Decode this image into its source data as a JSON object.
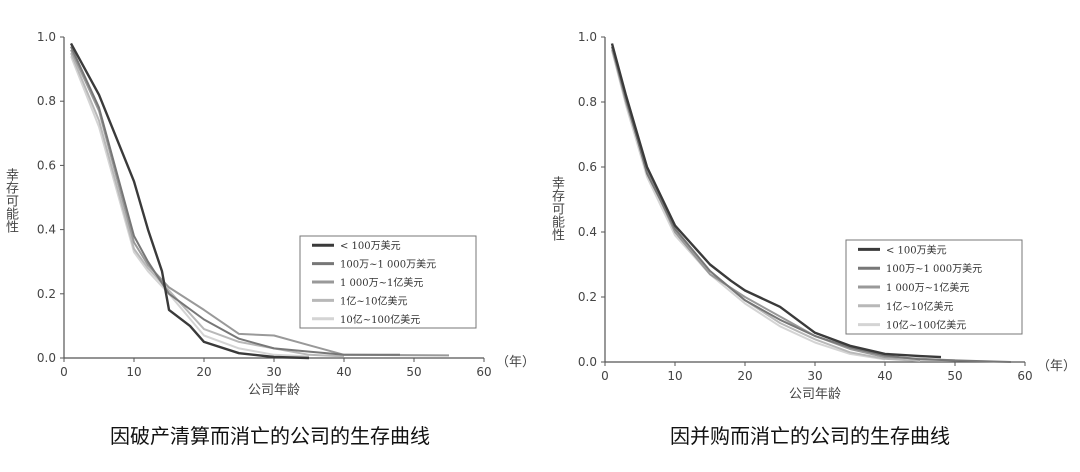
{
  "chart_data": [
    {
      "type": "line",
      "caption": "因破产清算而消亡的公司的生存曲线",
      "xlabel": "公司年龄",
      "xunit": "（年）",
      "ylabel": "幸存可能性",
      "xlim": [
        0,
        60
      ],
      "ylim": [
        0,
        1.0
      ],
      "xticks": [
        0,
        10,
        20,
        30,
        40,
        50,
        60
      ],
      "yticks": [
        "0.0",
        "0.2",
        "0.4",
        "0.6",
        "0.8",
        "1.0"
      ],
      "legend_position": "center-right",
      "series": [
        {
          "name": "< 100万美元",
          "color": "#3a3a3a",
          "points": [
            [
              1,
              0.98
            ],
            [
              5,
              0.82
            ],
            [
              10,
              0.55
            ],
            [
              12,
              0.4
            ],
            [
              14,
              0.27
            ],
            [
              15,
              0.15
            ],
            [
              18,
              0.1
            ],
            [
              20,
              0.05
            ],
            [
              25,
              0.015
            ],
            [
              30,
              0.003
            ],
            [
              35,
              0.0
            ]
          ]
        },
        {
          "name": "100万~1 000万美元",
          "color": "#777777",
          "points": [
            [
              1,
              0.97
            ],
            [
              5,
              0.78
            ],
            [
              10,
              0.38
            ],
            [
              12,
              0.3
            ],
            [
              15,
              0.2
            ],
            [
              20,
              0.12
            ],
            [
              25,
              0.06
            ],
            [
              30,
              0.03
            ],
            [
              35,
              0.02
            ],
            [
              40,
              0.01
            ],
            [
              48,
              0.01
            ]
          ]
        },
        {
          "name": "1 000万~1亿美元",
          "color": "#999999",
          "points": [
            [
              1,
              0.96
            ],
            [
              5,
              0.77
            ],
            [
              10,
              0.36
            ],
            [
              12,
              0.29
            ],
            [
              15,
              0.22
            ],
            [
              20,
              0.15
            ],
            [
              25,
              0.075
            ],
            [
              30,
              0.07
            ],
            [
              35,
              0.04
            ],
            [
              40,
              0.01
            ],
            [
              55,
              0.008
            ]
          ]
        },
        {
          "name": "1亿~10亿美元",
          "color": "#b8b8b8",
          "points": [
            [
              1,
              0.95
            ],
            [
              5,
              0.74
            ],
            [
              10,
              0.34
            ],
            [
              12,
              0.28
            ],
            [
              15,
              0.21
            ],
            [
              20,
              0.09
            ],
            [
              25,
              0.05
            ],
            [
              30,
              0.03
            ],
            [
              35,
              0.01
            ],
            [
              40,
              0.005
            ]
          ]
        },
        {
          "name": "10亿~100亿美元",
          "color": "#d4d4d4",
          "points": [
            [
              1,
              0.94
            ],
            [
              5,
              0.72
            ],
            [
              10,
              0.33
            ],
            [
              12,
              0.27
            ],
            [
              15,
              0.2
            ],
            [
              20,
              0.07
            ],
            [
              25,
              0.03
            ],
            [
              30,
              0.01
            ],
            [
              35,
              0.005
            ]
          ]
        }
      ]
    },
    {
      "type": "line",
      "caption": "因并购而消亡的公司的生存曲线",
      "xlabel": "公司年龄",
      "xunit": "（年）",
      "ylabel": "幸存可能性",
      "xlim": [
        0,
        60
      ],
      "ylim": [
        0,
        1.0
      ],
      "xticks": [
        0,
        10,
        20,
        30,
        40,
        50,
        60
      ],
      "yticks": [
        "0.0",
        "0.2",
        "0.4",
        "0.6",
        "0.8",
        "1.0"
      ],
      "legend_position": "center-right",
      "series": [
        {
          "name": "< 100万美元",
          "color": "#3a3a3a",
          "points": [
            [
              1,
              0.98
            ],
            [
              3,
              0.82
            ],
            [
              6,
              0.6
            ],
            [
              10,
              0.42
            ],
            [
              15,
              0.3
            ],
            [
              18,
              0.25
            ],
            [
              20,
              0.22
            ],
            [
              25,
              0.17
            ],
            [
              30,
              0.09
            ],
            [
              35,
              0.05
            ],
            [
              40,
              0.025
            ],
            [
              45,
              0.018
            ],
            [
              48,
              0.015
            ]
          ]
        },
        {
          "name": "100万~1 000万美元",
          "color": "#777777",
          "points": [
            [
              1,
              0.97
            ],
            [
              3,
              0.81
            ],
            [
              6,
              0.58
            ],
            [
              10,
              0.41
            ],
            [
              15,
              0.28
            ],
            [
              20,
              0.19
            ],
            [
              25,
              0.13
            ],
            [
              30,
              0.08
            ],
            [
              35,
              0.045
            ],
            [
              40,
              0.02
            ],
            [
              45,
              0.008
            ],
            [
              58,
              0.0
            ]
          ]
        },
        {
          "name": "1 000万~1亿美元",
          "color": "#999999",
          "points": [
            [
              1,
              0.97
            ],
            [
              3,
              0.8
            ],
            [
              6,
              0.59
            ],
            [
              10,
              0.4
            ],
            [
              15,
              0.27
            ],
            [
              20,
              0.2
            ],
            [
              25,
              0.14
            ],
            [
              30,
              0.08
            ],
            [
              35,
              0.04
            ],
            [
              40,
              0.015
            ],
            [
              50,
              0.005
            ]
          ]
        },
        {
          "name": "1亿~10亿美元",
          "color": "#b8b8b8",
          "points": [
            [
              1,
              0.96
            ],
            [
              3,
              0.8
            ],
            [
              6,
              0.6
            ],
            [
              10,
              0.41
            ],
            [
              15,
              0.28
            ],
            [
              20,
              0.19
            ],
            [
              25,
              0.12
            ],
            [
              30,
              0.07
            ],
            [
              35,
              0.03
            ],
            [
              40,
              0.01
            ],
            [
              45,
              0.003
            ]
          ]
        },
        {
          "name": "10亿~100亿美元",
          "color": "#d4d4d4",
          "points": [
            [
              1,
              0.96
            ],
            [
              3,
              0.79
            ],
            [
              6,
              0.57
            ],
            [
              10,
              0.39
            ],
            [
              15,
              0.27
            ],
            [
              20,
              0.18
            ],
            [
              25,
              0.11
            ],
            [
              30,
              0.06
            ],
            [
              35,
              0.025
            ],
            [
              40,
              0.008
            ]
          ]
        }
      ]
    }
  ]
}
